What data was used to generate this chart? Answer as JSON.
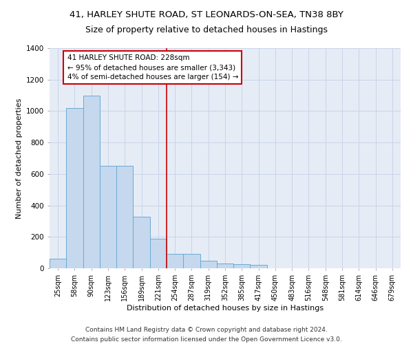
{
  "title1": "41, HARLEY SHUTE ROAD, ST LEONARDS-ON-SEA, TN38 8BY",
  "title2": "Size of property relative to detached houses in Hastings",
  "xlabel": "Distribution of detached houses by size in Hastings",
  "ylabel": "Number of detached properties",
  "bar_color": "#c5d8ed",
  "bar_edge_color": "#6aaad4",
  "categories": [
    "25sqm",
    "58sqm",
    "90sqm",
    "123sqm",
    "156sqm",
    "189sqm",
    "221sqm",
    "254sqm",
    "287sqm",
    "319sqm",
    "352sqm",
    "385sqm",
    "417sqm",
    "450sqm",
    "483sqm",
    "516sqm",
    "548sqm",
    "581sqm",
    "614sqm",
    "646sqm",
    "679sqm"
  ],
  "values": [
    62,
    1020,
    1100,
    650,
    650,
    330,
    190,
    90,
    90,
    50,
    30,
    25,
    20,
    0,
    0,
    0,
    0,
    0,
    0,
    0,
    0
  ],
  "vline_pos": 6.5,
  "annotation_line1": "41 HARLEY SHUTE ROAD: 228sqm",
  "annotation_line2": "← 95% of detached houses are smaller (3,343)",
  "annotation_line3": "4% of semi-detached houses are larger (154) →",
  "annotation_box_color": "#ffffff",
  "annotation_edge_color": "#cc0000",
  "vline_color": "#cc0000",
  "ylim": [
    0,
    1400
  ],
  "yticks": [
    0,
    200,
    400,
    600,
    800,
    1000,
    1200,
    1400
  ],
  "grid_color": "#c8d4e8",
  "background_color": "#e6ecf5",
  "footer1": "Contains HM Land Registry data © Crown copyright and database right 2024.",
  "footer2": "Contains public sector information licensed under the Open Government Licence v3.0.",
  "title1_fontsize": 9.5,
  "title2_fontsize": 9,
  "annotation_fontsize": 7.5,
  "tick_fontsize": 7,
  "ylabel_fontsize": 8,
  "xlabel_fontsize": 8,
  "footer_fontsize": 6.5
}
